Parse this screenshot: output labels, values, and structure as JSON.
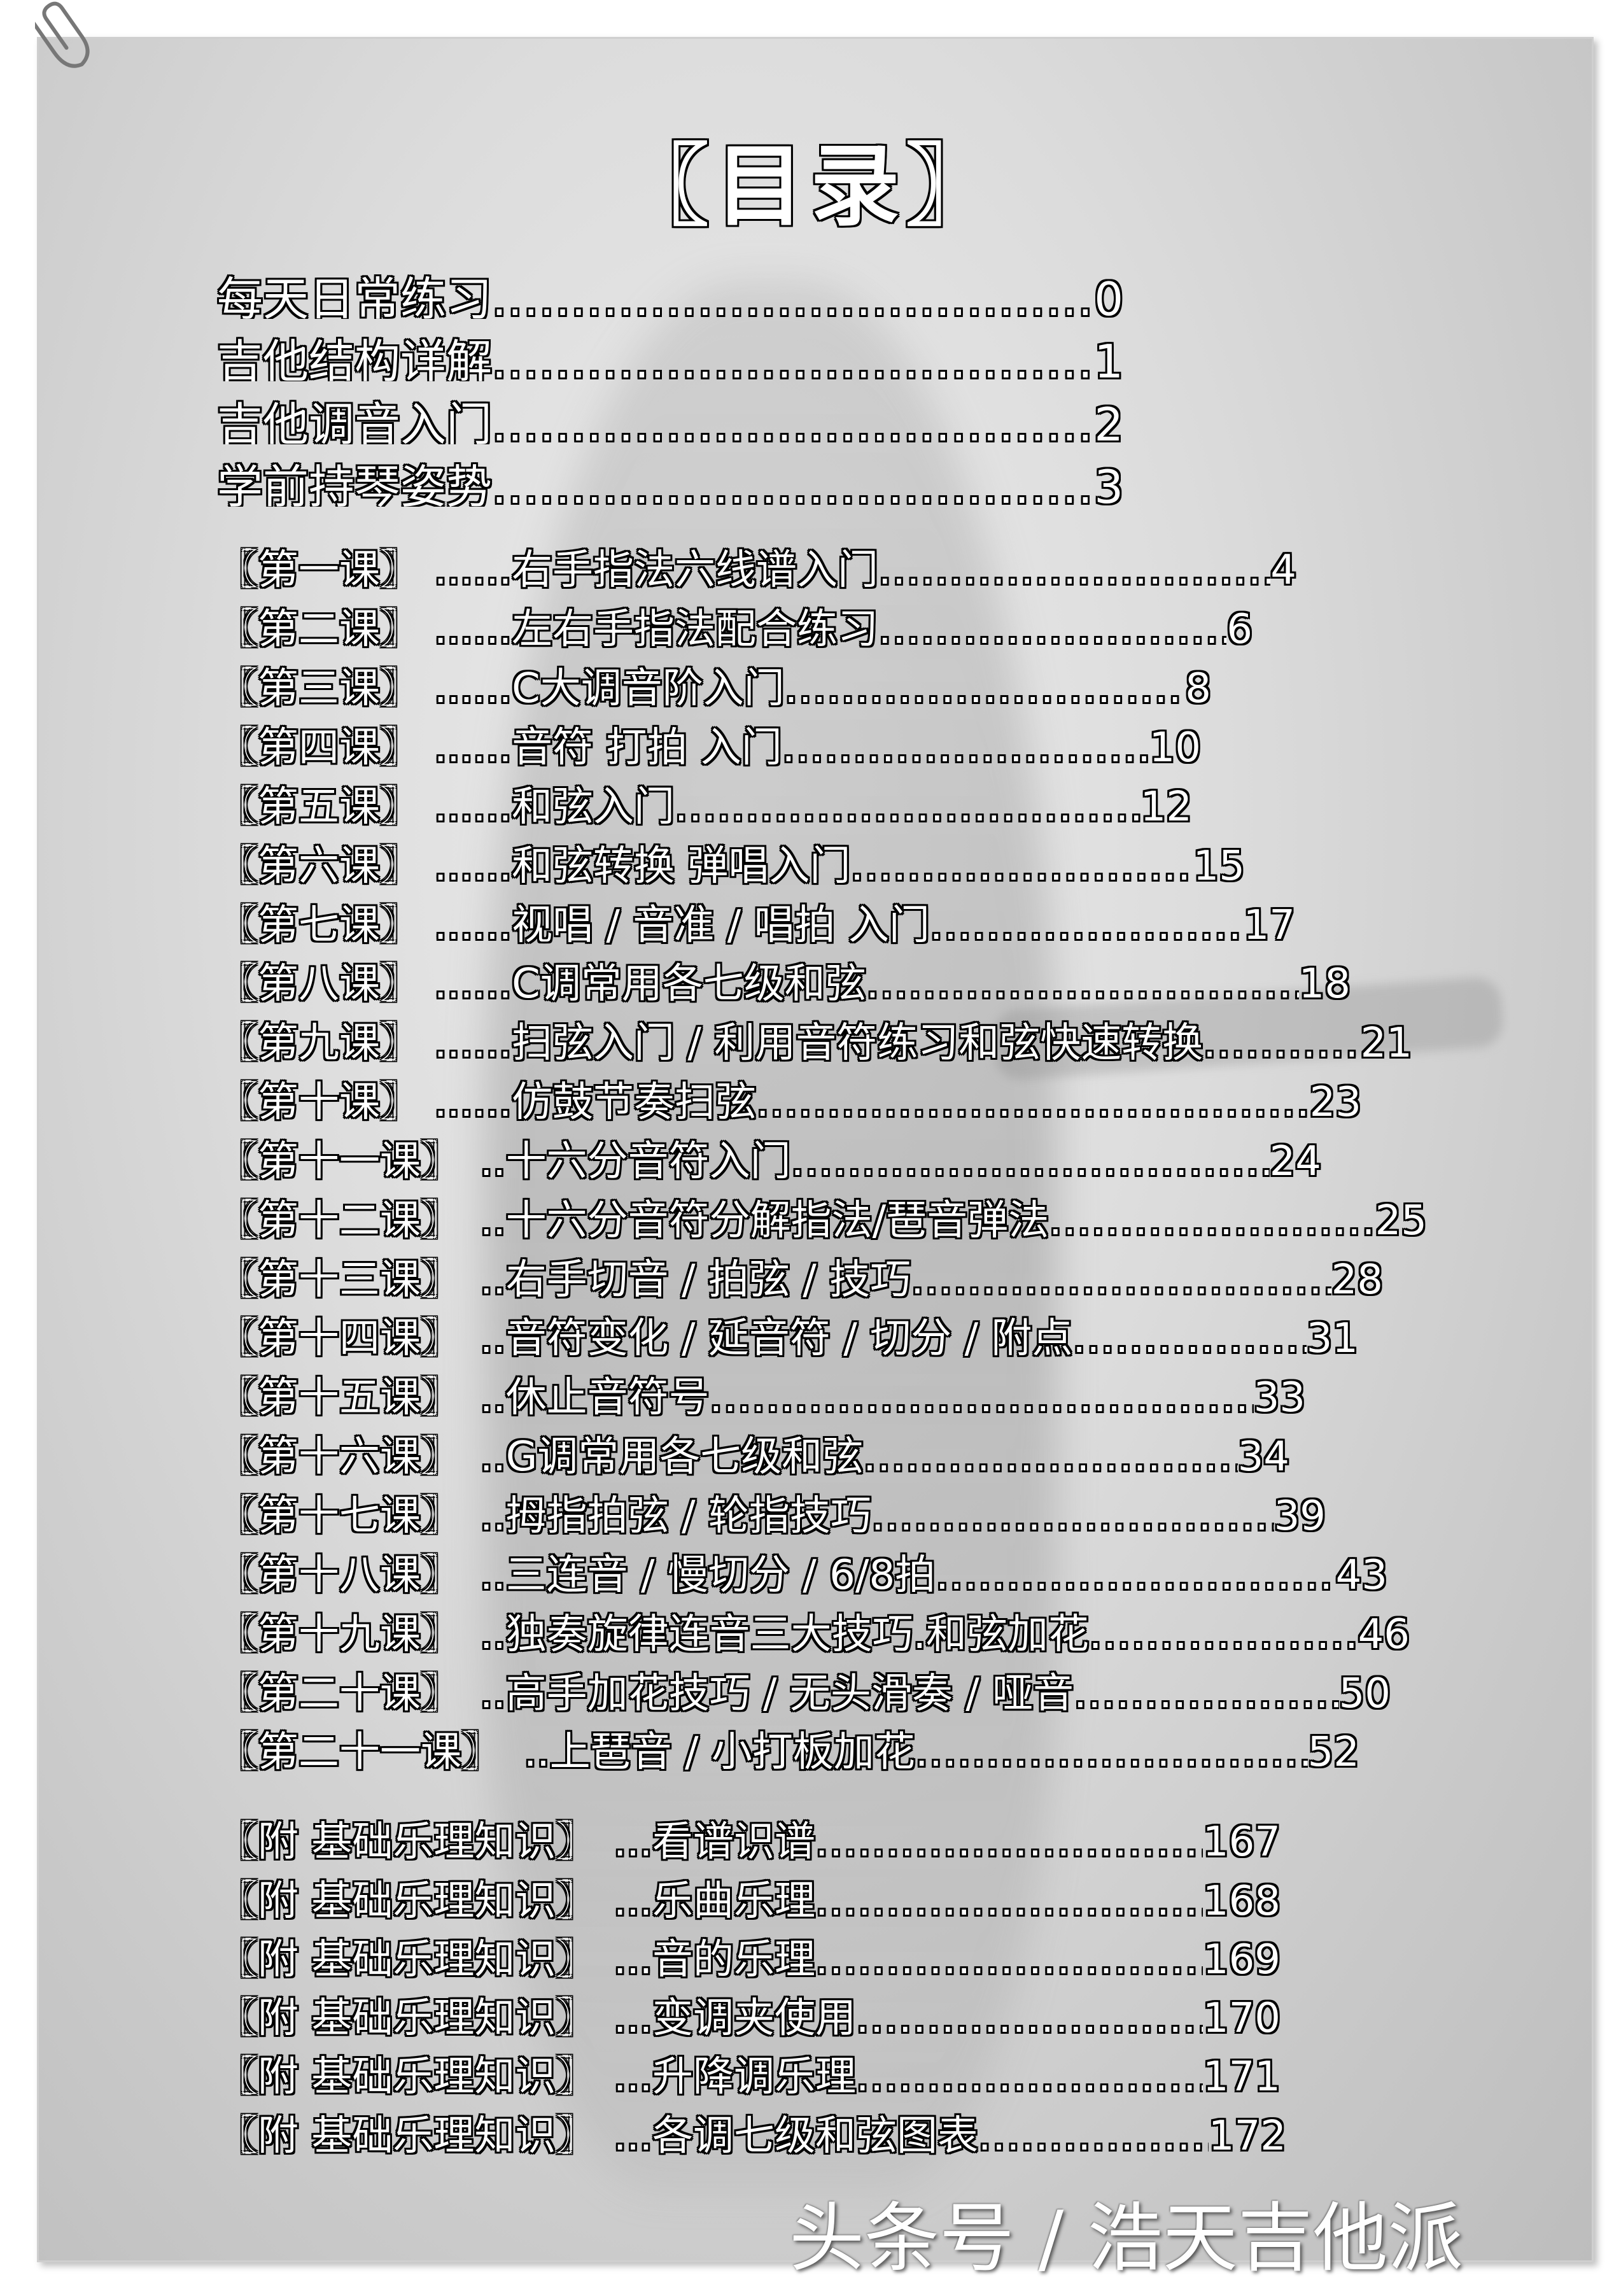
{
  "title": "〖目录〗",
  "intro": [
    {
      "title": "每天日常练习",
      "page": "0"
    },
    {
      "title": "吉他结构详解",
      "page": "1"
    },
    {
      "title": "吉他调音入门",
      "page": "2"
    },
    {
      "title": "学前持琴姿势",
      "page": "3"
    }
  ],
  "lessons": [
    {
      "label": "〖第一课〗",
      "title": "......右手指法六线谱入门",
      "page": "4"
    },
    {
      "label": "〖第二课〗",
      "title": "......左右手指法配合练习",
      "page": "6"
    },
    {
      "label": "〖第三课〗",
      "title": "......C大调音阶入门",
      "page": "8"
    },
    {
      "label": "〖第四课〗",
      "title": "......音符 打拍 入门",
      "page": "10"
    },
    {
      "label": "〖第五课〗",
      "title": "......和弦入门",
      "page": "12"
    },
    {
      "label": "〖第六课〗",
      "title": "......和弦转换 弹唱入门",
      "page": "15"
    },
    {
      "label": "〖第七课〗",
      "title": "......视唱 / 音准 / 唱拍 入门",
      "page": "17"
    },
    {
      "label": "〖第八课〗",
      "title": "......C调常用各七级和弦",
      "page": "18"
    },
    {
      "label": "〖第九课〗",
      "title": "......扫弦入门 / 利用音符练习和弦快速转换",
      "page": "21"
    },
    {
      "label": "〖第十课〗",
      "title": "......仿鼓节奏扫弦",
      "page": "23"
    },
    {
      "label": "〖第十一课〗",
      "title": "..十六分音符入门",
      "page": "24"
    },
    {
      "label": "〖第十二课〗",
      "title": "..十六分音符分解指法/琶音弹法",
      "page": "25"
    },
    {
      "label": "〖第十三课〗",
      "title": "..右手切音 / 拍弦 / 技巧",
      "page": "28"
    },
    {
      "label": "〖第十四课〗",
      "title": "..音符变化 / 延音符 / 切分 / 附点",
      "page": "31"
    },
    {
      "label": "〖第十五课〗",
      "title": "..休止音符号",
      "page": "33"
    },
    {
      "label": "〖第十六课〗",
      "title": "..G调常用各七级和弦",
      "page": "34"
    },
    {
      "label": "〖第十七课〗",
      "title": "..拇指拍弦 / 轮指技巧",
      "page": "39"
    },
    {
      "label": "〖第十八课〗",
      "title": "..三连音 / 慢切分 / 6/8拍",
      "page": "43"
    },
    {
      "label": "〖第十九课〗",
      "title": "..独奏旋律连音三大技巧.和弦加花",
      "page": "46"
    },
    {
      "label": "〖第二十课〗",
      "title": "..高手加花技巧 / 无头滑奏 / 哑音",
      "page": "50"
    },
    {
      "label": "〖第二十一课〗",
      "title": "..上琶音 / 小打板加花",
      "page": "52"
    }
  ],
  "appendix": [
    {
      "label": "〖附 基础乐理知识〗",
      "title": "...看谱识谱",
      "page": "167"
    },
    {
      "label": "〖附 基础乐理知识〗",
      "title": "...乐曲乐理",
      "page": "168"
    },
    {
      "label": "〖附 基础乐理知识〗",
      "title": "...音的乐理",
      "page": "169"
    },
    {
      "label": "〖附 基础乐理知识〗",
      "title": "...变调夹使用",
      "page": "170"
    },
    {
      "label": "〖附 基础乐理知识〗",
      "title": "...升降调乐理",
      "page": "171"
    },
    {
      "label": "〖附 基础乐理知识〗",
      "title": "...各调七级和弦图表",
      "page": "172"
    }
  ],
  "watermark": "头条号 / 浩天吉他派",
  "icons": {
    "paperclip": "paperclip-icon"
  }
}
